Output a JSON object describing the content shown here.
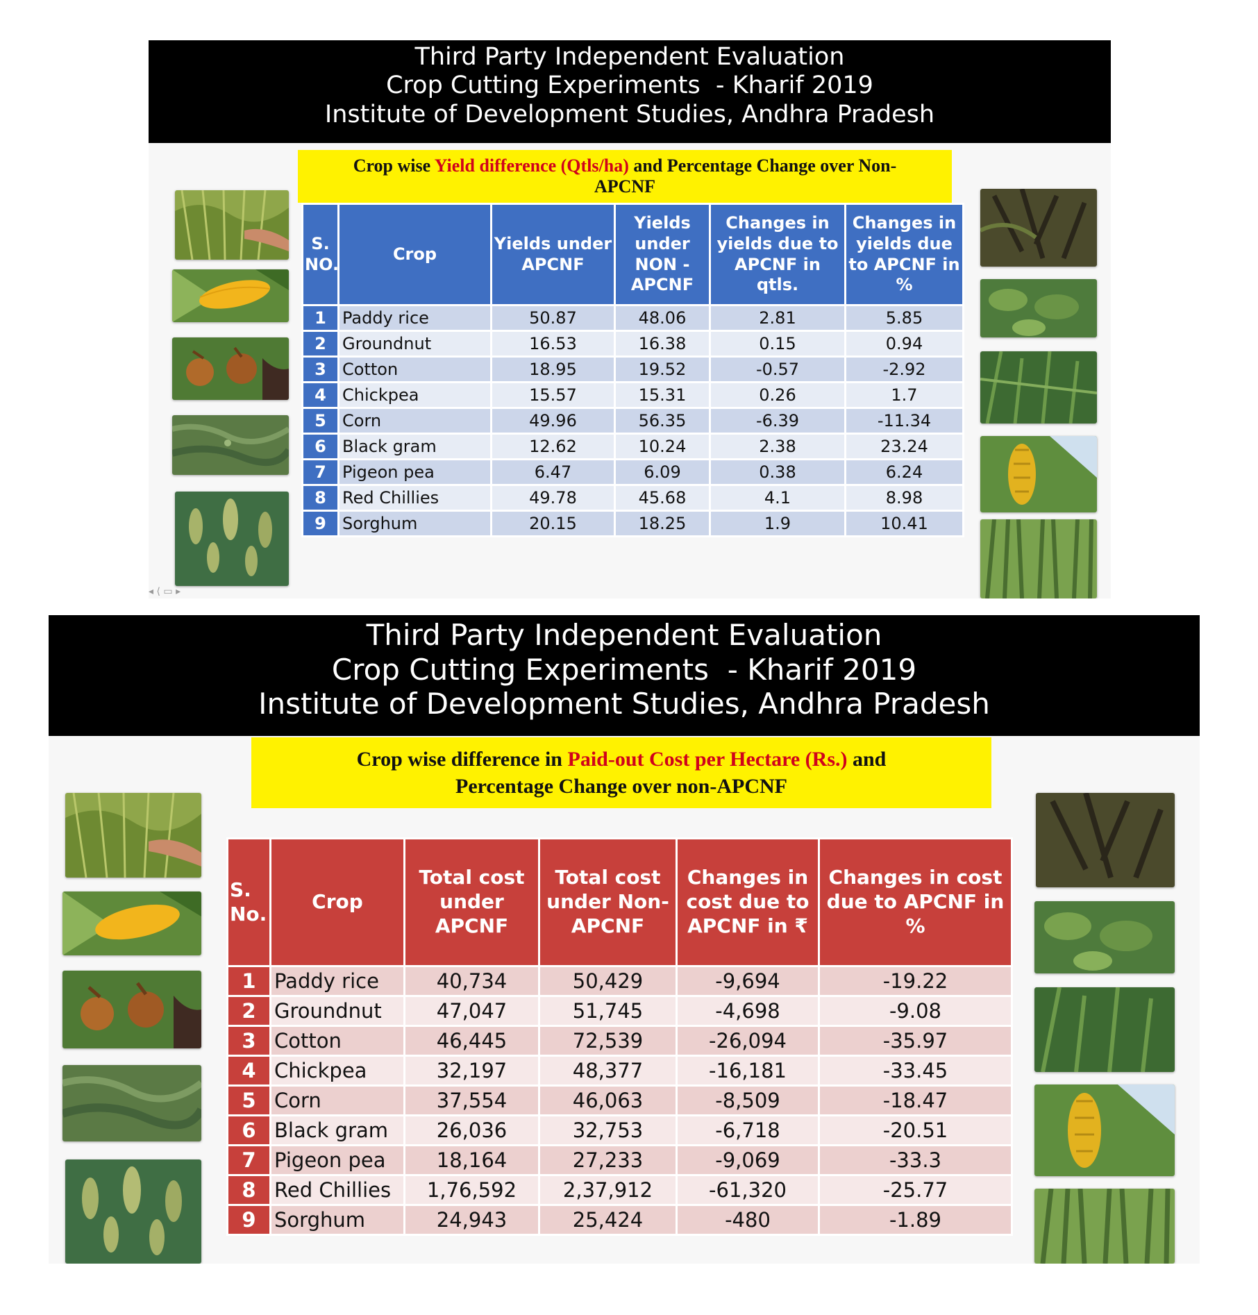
{
  "slides": [
    {
      "header": {
        "line1": "Third Party Independent Evaluation",
        "line2": "Crop Cutting Experiments  - Kharif 2019",
        "line3": "Institute of Development Studies, Andhra Pradesh"
      },
      "subtitle": {
        "pre": "Crop wise ",
        "highlight": "Yield difference (Qtls/ha)",
        "post": " and Percentage Change over Non-",
        "line2": "APCNF"
      },
      "table": {
        "headers": [
          "S. NO.",
          "Crop",
          "Yields under APCNF",
          "Yields under NON - APCNF",
          "Changes in yields due to APCNF in qtls.",
          "Changes in yields due to APCNF in %"
        ],
        "rows": [
          [
            "1",
            "Paddy rice",
            "50.87",
            "48.06",
            "2.81",
            "5.85"
          ],
          [
            "2",
            "Groundnut",
            "16.53",
            "16.38",
            "0.15",
            "0.94"
          ],
          [
            "3",
            "Cotton",
            "18.95",
            "19.52",
            "-0.57",
            "-2.92"
          ],
          [
            "4",
            "Chickpea",
            "15.57",
            "15.31",
            "0.26",
            "1.7"
          ],
          [
            "5",
            "Corn",
            "49.96",
            "56.35",
            "-6.39",
            "-11.34"
          ],
          [
            "6",
            "Black gram",
            "12.62",
            "10.24",
            "2.38",
            "23.24"
          ],
          [
            "7",
            "Pigeon pea",
            "6.47",
            "6.09",
            "0.38",
            "6.24"
          ],
          [
            "8",
            "Red Chillies",
            "49.78",
            "45.68",
            "4.1",
            "8.98"
          ],
          [
            "9",
            "Sorghum",
            "20.15",
            "18.25",
            "1.9",
            "10.41"
          ]
        ]
      }
    },
    {
      "header": {
        "line1": "Third Party Independent Evaluation",
        "line2": "Crop Cutting Experiments  - Kharif 2019",
        "line3": "Institute of Development Studies, Andhra Pradesh"
      },
      "subtitle": {
        "pre": "Crop wise difference in ",
        "highlight": "Paid-out Cost per Hectare (Rs.)",
        "post": " and",
        "line2": "Percentage Change over non-APCNF"
      },
      "table": {
        "headers": [
          "S. No.",
          "Crop",
          "Total cost under APCNF",
          "Total cost under Non-APCNF",
          "Changes in cost due to APCNF in ₹",
          "Changes in cost due to APCNF in %"
        ],
        "rows": [
          [
            "1",
            "Paddy rice",
            "40,734",
            "50,429",
            "-9,694",
            "-19.22"
          ],
          [
            "2",
            "Groundnut",
            "47,047",
            "51,745",
            "-4,698",
            "-9.08"
          ],
          [
            "3",
            "Cotton",
            "46,445",
            "72,539",
            "-26,094",
            "-35.97"
          ],
          [
            "4",
            "Chickpea",
            "32,197",
            "48,377",
            "-16,181",
            "-33.45"
          ],
          [
            "5",
            "Corn",
            "37,554",
            "46,063",
            "-8,509",
            "-18.47"
          ],
          [
            "6",
            "Black gram",
            "26,036",
            "32,753",
            "-6,718",
            "-20.51"
          ],
          [
            "7",
            "Pigeon pea",
            "18,164",
            "27,233",
            "-9,069",
            "-33.3"
          ],
          [
            "8",
            "Red Chillies",
            "1,76,592",
            "2,37,912",
            "-61,320",
            "-25.77"
          ],
          [
            "9",
            "Sorghum",
            "24,943",
            "25,424",
            "-480",
            "-1.89"
          ]
        ]
      }
    }
  ],
  "photos_left": [
    "rice-paddy-photo",
    "corn-cob-photo",
    "groundnut-photo",
    "chickpea-field-photo",
    "sorghum-photo"
  ],
  "photos_right": [
    "red-chillies-plant-photo",
    "black-gram-plant-photo",
    "pigeon-pea-plant-photo",
    "banana-bunch-photo",
    "sugarcane-photo"
  ],
  "colors": {
    "header_bg": "#000000",
    "subtitle_bg": "#fff200",
    "highlight_text": "#d0021b",
    "table1_header": "#3f6fc2",
    "table2_header": "#c7403b"
  }
}
